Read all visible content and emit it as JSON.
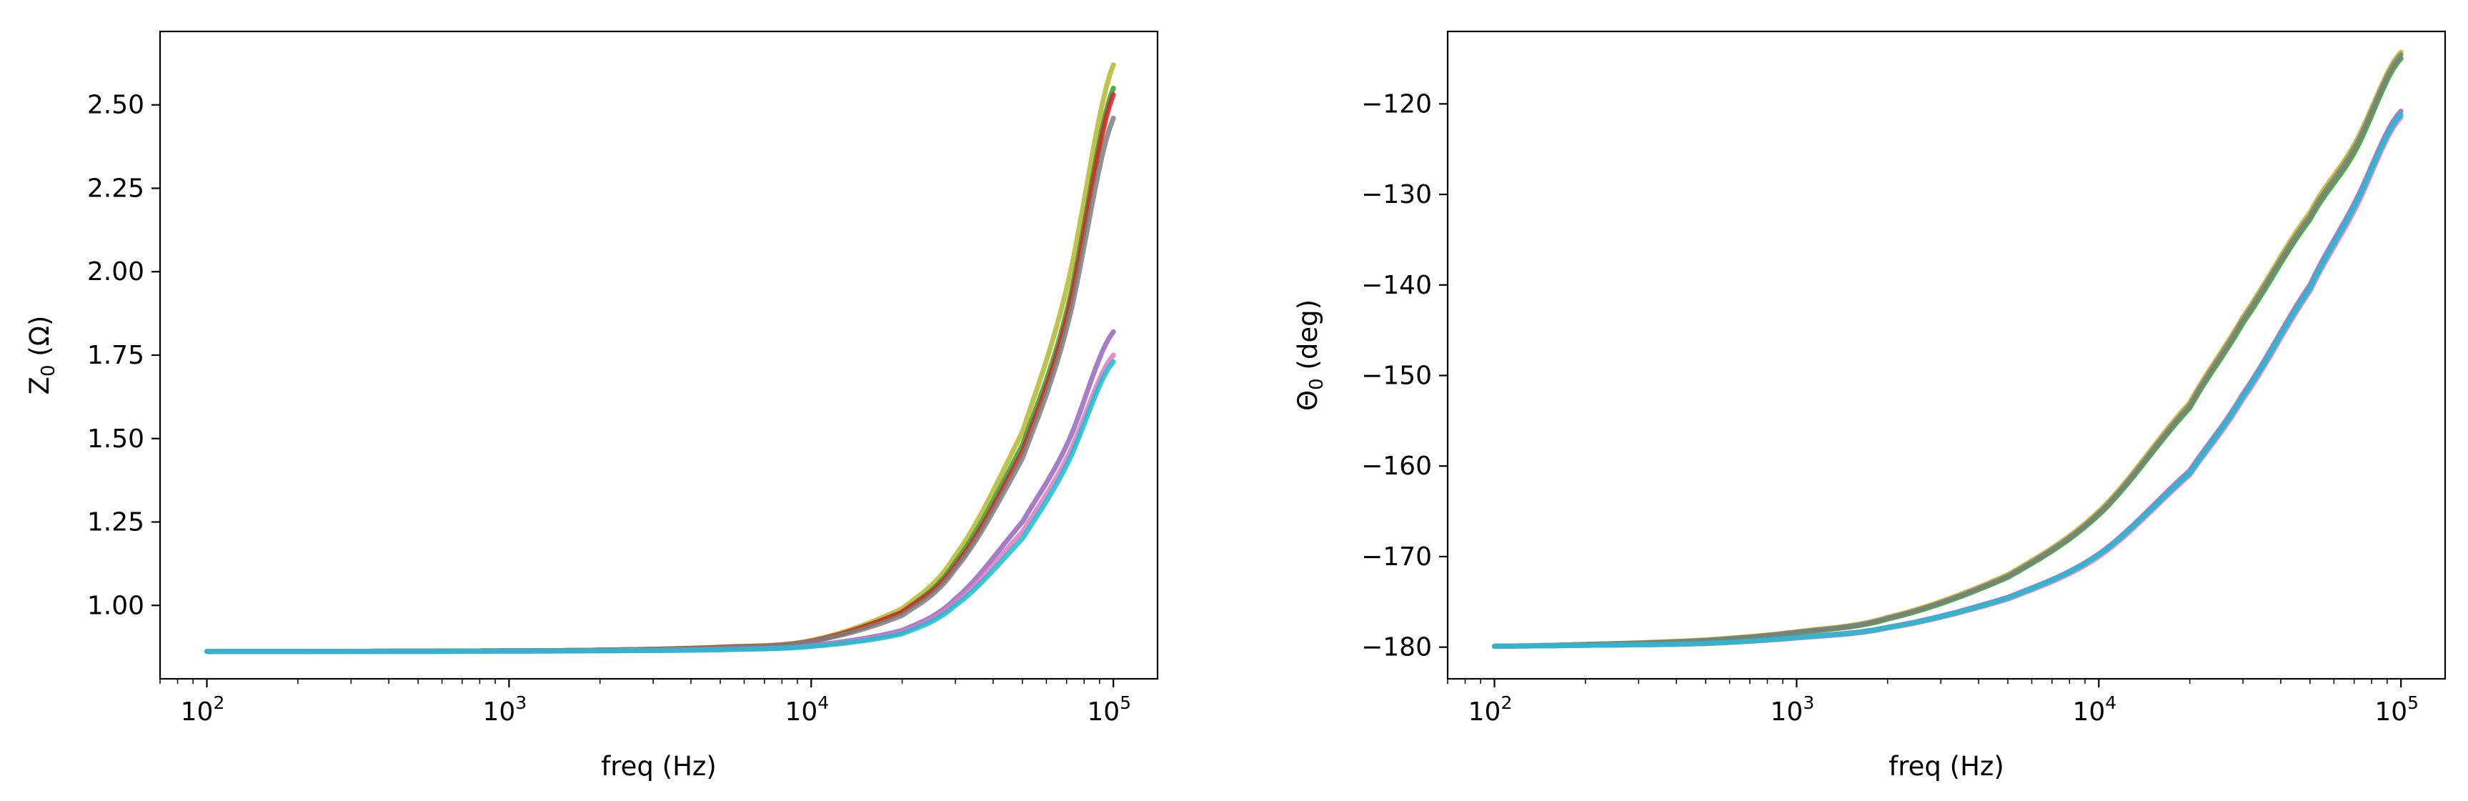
{
  "chart_data": [
    {
      "type": "line",
      "title": "",
      "xlabel": "freq (Hz)",
      "ylabel": "Z",
      "ylabel_sub": "0",
      "ylabel_unit": " (Ω)",
      "xscale": "log",
      "xlim": [
        70,
        140000
      ],
      "ylim": [
        0.78,
        2.72
      ],
      "xticks": [
        {
          "value": 100,
          "base": "10",
          "exp": "2"
        },
        {
          "value": 1000,
          "base": "10",
          "exp": "3"
        },
        {
          "value": 10000,
          "base": "10",
          "exp": "4"
        },
        {
          "value": 100000,
          "base": "10",
          "exp": "5"
        }
      ],
      "yticks": [
        1.0,
        1.25,
        1.5,
        1.75,
        2.0,
        2.25,
        2.5
      ],
      "ytick_labels": [
        "1.00",
        "1.25",
        "1.50",
        "1.75",
        "2.00",
        "2.25",
        "2.50"
      ],
      "grid": false,
      "legend": "none",
      "x": [
        100,
        200,
        500,
        1000,
        2000,
        5000,
        10000,
        20000,
        30000,
        50000,
        70000,
        100000
      ],
      "series": [
        {
          "color": "#b5b82c",
          "values": [
            0.862,
            0.862,
            0.863,
            0.864,
            0.866,
            0.875,
            0.895,
            0.99,
            1.15,
            1.52,
            1.95,
            2.62
          ]
        },
        {
          "color": "#2ca02c",
          "values": [
            0.862,
            0.862,
            0.863,
            0.864,
            0.866,
            0.874,
            0.893,
            0.98,
            1.13,
            1.48,
            1.88,
            2.55
          ]
        },
        {
          "color": "#d62728",
          "values": [
            0.862,
            0.862,
            0.863,
            0.864,
            0.866,
            0.874,
            0.893,
            0.98,
            1.12,
            1.46,
            1.86,
            2.53
          ]
        },
        {
          "color": "#7f7f7f",
          "values": [
            0.862,
            0.862,
            0.863,
            0.864,
            0.866,
            0.873,
            0.892,
            0.97,
            1.11,
            1.44,
            1.83,
            2.46
          ]
        },
        {
          "color": "#9467bd",
          "values": [
            0.862,
            0.862,
            0.862,
            0.863,
            0.864,
            0.868,
            0.88,
            0.925,
            1.02,
            1.25,
            1.48,
            1.82
          ]
        },
        {
          "color": "#e377c2",
          "values": [
            0.862,
            0.862,
            0.862,
            0.863,
            0.864,
            0.868,
            0.878,
            0.92,
            1.01,
            1.22,
            1.44,
            1.75
          ]
        },
        {
          "color": "#17becf",
          "values": [
            0.862,
            0.862,
            0.862,
            0.863,
            0.864,
            0.867,
            0.877,
            0.915,
            1.0,
            1.2,
            1.42,
            1.73
          ]
        }
      ]
    },
    {
      "type": "line",
      "title": "",
      "xlabel": "freq (Hz)",
      "ylabel": "Θ",
      "ylabel_sub": "0",
      "ylabel_unit": " (deg)",
      "xscale": "log",
      "xlim": [
        70,
        140000
      ],
      "ylim": [
        -183.5,
        -112
      ],
      "xticks": [
        {
          "value": 100,
          "base": "10",
          "exp": "2"
        },
        {
          "value": 1000,
          "base": "10",
          "exp": "3"
        },
        {
          "value": 10000,
          "base": "10",
          "exp": "4"
        },
        {
          "value": 100000,
          "base": "10",
          "exp": "5"
        }
      ],
      "yticks": [
        -180,
        -170,
        -160,
        -150,
        -140,
        -130,
        -120
      ],
      "ytick_labels": [
        "−180",
        "−170",
        "−160",
        "−150",
        "−140",
        "−130",
        "−120"
      ],
      "grid": false,
      "legend": "none",
      "x": [
        100,
        200,
        500,
        1000,
        2000,
        5000,
        10000,
        20000,
        30000,
        50000,
        70000,
        100000
      ],
      "series": [
        {
          "color": "#b5b82c",
          "values": [
            -179.9,
            -179.7,
            -179.2,
            -178.3,
            -176.7,
            -172.0,
            -165.0,
            -153.0,
            -143.5,
            -132.0,
            -124.5,
            -114.3
          ]
        },
        {
          "color": "#2ca02c",
          "values": [
            -179.9,
            -179.7,
            -179.3,
            -178.4,
            -176.9,
            -172.3,
            -165.4,
            -153.6,
            -144.2,
            -132.8,
            -125.4,
            -115.0
          ]
        },
        {
          "color": "#7f7f7f",
          "values": [
            -179.9,
            -179.7,
            -179.25,
            -178.35,
            -176.8,
            -172.15,
            -165.2,
            -153.3,
            -143.8,
            -132.4,
            -124.9,
            -114.6
          ]
        },
        {
          "color": "#9467bd",
          "values": [
            -179.9,
            -179.8,
            -179.6,
            -178.9,
            -177.8,
            -174.5,
            -169.7,
            -160.5,
            -152.0,
            -140.0,
            -131.0,
            -120.8
          ]
        },
        {
          "color": "#e377c2",
          "values": [
            -179.9,
            -179.8,
            -179.6,
            -179.0,
            -177.9,
            -174.7,
            -170.0,
            -161.0,
            -152.6,
            -140.7,
            -131.8,
            -121.5
          ]
        },
        {
          "color": "#17becf",
          "values": [
            -179.9,
            -179.8,
            -179.6,
            -178.95,
            -177.85,
            -174.6,
            -169.8,
            -160.8,
            -152.3,
            -140.4,
            -131.4,
            -121.2
          ]
        }
      ]
    }
  ]
}
